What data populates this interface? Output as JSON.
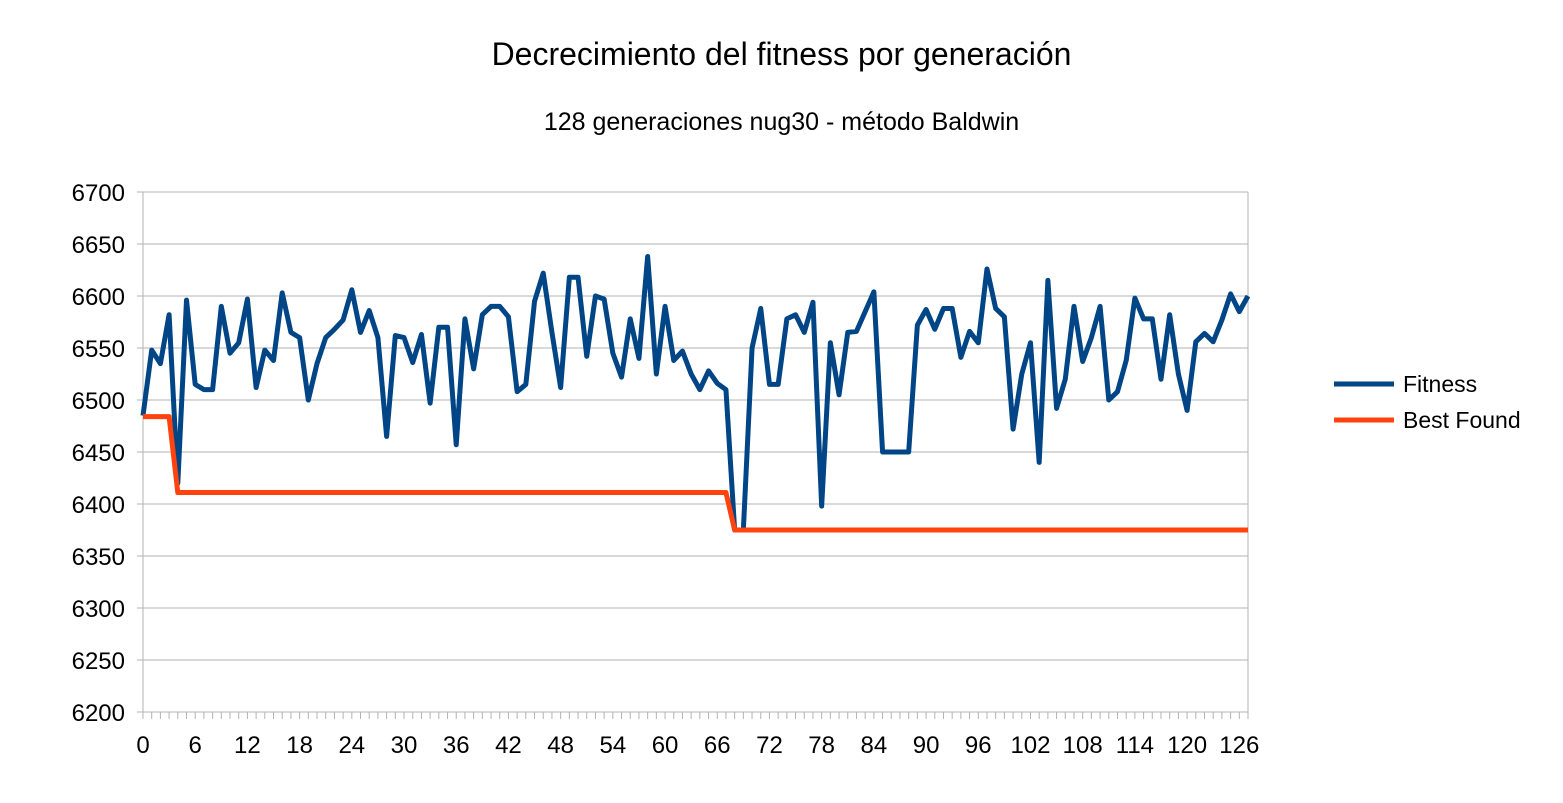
{
  "chart_data": {
    "type": "line",
    "title": "Decrecimiento del fitness por generación",
    "subtitle": "128 generaciones nug30 - método Baldwin",
    "xlabel": "",
    "ylabel": "",
    "ylim": [
      6200,
      6700
    ],
    "yticks": [
      6200,
      6250,
      6300,
      6350,
      6400,
      6450,
      6500,
      6550,
      6600,
      6650,
      6700
    ],
    "xlim": [
      0,
      127
    ],
    "xticks": [
      0,
      6,
      12,
      18,
      24,
      30,
      36,
      42,
      48,
      54,
      60,
      66,
      72,
      78,
      84,
      90,
      96,
      102,
      108,
      114,
      120,
      126
    ],
    "grid": "horizontal",
    "legend_position": "right",
    "x": [
      0,
      1,
      2,
      3,
      4,
      5,
      6,
      7,
      8,
      9,
      10,
      11,
      12,
      13,
      14,
      15,
      16,
      17,
      18,
      19,
      20,
      21,
      22,
      23,
      24,
      25,
      26,
      27,
      28,
      29,
      30,
      31,
      32,
      33,
      34,
      35,
      36,
      37,
      38,
      39,
      40,
      41,
      42,
      43,
      44,
      45,
      46,
      47,
      48,
      49,
      50,
      51,
      52,
      53,
      54,
      55,
      56,
      57,
      58,
      59,
      60,
      61,
      62,
      63,
      64,
      65,
      66,
      67,
      68,
      69,
      70,
      71,
      72,
      73,
      74,
      75,
      76,
      77,
      78,
      79,
      80,
      81,
      82,
      83,
      84,
      85,
      86,
      87,
      88,
      89,
      90,
      91,
      92,
      93,
      94,
      95,
      96,
      97,
      98,
      99,
      100,
      101,
      102,
      103,
      104,
      105,
      106,
      107,
      108,
      109,
      110,
      111,
      112,
      113,
      114,
      115,
      116,
      117,
      118,
      119,
      120,
      121,
      122,
      123,
      124,
      125,
      126,
      127
    ],
    "series": [
      {
        "name": "Fitness",
        "color": "#004586",
        "values": [
          6485,
          6548,
          6535,
          6582,
          6420,
          6596,
          6515,
          6510,
          6510,
          6590,
          6545,
          6555,
          6597,
          6512,
          6548,
          6538,
          6603,
          6565,
          6560,
          6500,
          6535,
          6560,
          6568,
          6577,
          6606,
          6565,
          6586,
          6560,
          6465,
          6562,
          6560,
          6536,
          6563,
          6497,
          6570,
          6570,
          6457,
          6578,
          6530,
          6582,
          6590,
          6590,
          6580,
          6508,
          6515,
          6595,
          6622,
          6565,
          6512,
          6618,
          6618,
          6542,
          6600,
          6597,
          6545,
          6522,
          6578,
          6540,
          6638,
          6525,
          6590,
          6538,
          6547,
          6525,
          6510,
          6528,
          6516,
          6510,
          6375,
          6375,
          6550,
          6588,
          6515,
          6515,
          6578,
          6582,
          6565,
          6594,
          6398,
          6555,
          6505,
          6565,
          6566,
          6585,
          6604,
          6450,
          6450,
          6450,
          6450,
          6572,
          6587,
          6568,
          6588,
          6588,
          6541,
          6566,
          6555,
          6626,
          6588,
          6580,
          6472,
          6525,
          6555,
          6440,
          6615,
          6492,
          6520,
          6590,
          6537,
          6560,
          6590,
          6500,
          6508,
          6538,
          6598,
          6578,
          6578,
          6520,
          6582,
          6525,
          6490,
          6556,
          6564,
          6556,
          6577,
          6602,
          6585,
          6600
        ]
      },
      {
        "name": "Best Found",
        "color": "#ff420e",
        "values": [
          6484,
          6484,
          6484,
          6484,
          6411,
          6411,
          6411,
          6411,
          6411,
          6411,
          6411,
          6411,
          6411,
          6411,
          6411,
          6411,
          6411,
          6411,
          6411,
          6411,
          6411,
          6411,
          6411,
          6411,
          6411,
          6411,
          6411,
          6411,
          6411,
          6411,
          6411,
          6411,
          6411,
          6411,
          6411,
          6411,
          6411,
          6411,
          6411,
          6411,
          6411,
          6411,
          6411,
          6411,
          6411,
          6411,
          6411,
          6411,
          6411,
          6411,
          6411,
          6411,
          6411,
          6411,
          6411,
          6411,
          6411,
          6411,
          6411,
          6411,
          6411,
          6411,
          6411,
          6411,
          6411,
          6411,
          6411,
          6411,
          6375,
          6375,
          6375,
          6375,
          6375,
          6375,
          6375,
          6375,
          6375,
          6375,
          6375,
          6375,
          6375,
          6375,
          6375,
          6375,
          6375,
          6375,
          6375,
          6375,
          6375,
          6375,
          6375,
          6375,
          6375,
          6375,
          6375,
          6375,
          6375,
          6375,
          6375,
          6375,
          6375,
          6375,
          6375,
          6375,
          6375,
          6375,
          6375,
          6375,
          6375,
          6375,
          6375,
          6375,
          6375,
          6375,
          6375,
          6375,
          6375,
          6375,
          6375,
          6375,
          6375,
          6375,
          6375,
          6375,
          6375,
          6375,
          6375,
          6375
        ]
      }
    ]
  }
}
